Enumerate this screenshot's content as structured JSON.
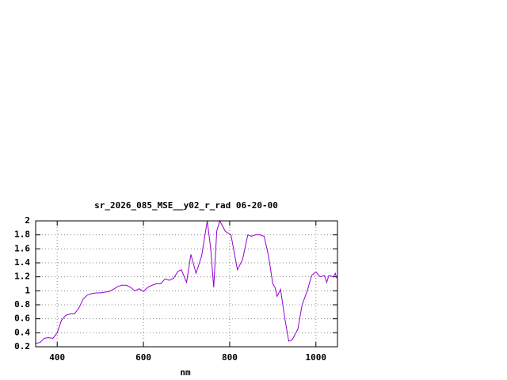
{
  "chart_data": {
    "type": "line",
    "title": "sr_2026_085_MSE__y02_r_rad 06-20-00",
    "x_label": "nm",
    "xlim": [
      350,
      1050
    ],
    "xticks": [
      400,
      600,
      800,
      1000
    ],
    "ylim": [
      0.2,
      2
    ],
    "yticks": [
      0.2,
      0.4,
      0.6,
      0.8,
      1,
      1.2,
      1.4,
      1.6,
      1.8,
      2
    ],
    "grid": true,
    "series": [
      {
        "name": null,
        "color": "#9400d3",
        "x": [
          350,
          360,
          370,
          380,
          390,
          400,
          410,
          420,
          430,
          440,
          450,
          460,
          470,
          480,
          490,
          500,
          510,
          520,
          530,
          540,
          550,
          560,
          570,
          580,
          590,
          600,
          610,
          620,
          630,
          640,
          650,
          660,
          670,
          680,
          688,
          700,
          710,
          722,
          735,
          748,
          756,
          763,
          770,
          777,
          790,
          803,
          818,
          830,
          842,
          850,
          860,
          870,
          880,
          890,
          900,
          905,
          910,
          918,
          928,
          937,
          945,
          958,
          968,
          980,
          990,
          1000,
          1010,
          1020,
          1025,
          1030,
          1040,
          1045,
          1048
        ],
        "values": [
          0.25,
          0.26,
          0.32,
          0.33,
          0.32,
          0.4,
          0.58,
          0.65,
          0.67,
          0.67,
          0.75,
          0.88,
          0.94,
          0.96,
          0.97,
          0.97,
          0.98,
          0.99,
          1.02,
          1.06,
          1.08,
          1.08,
          1.05,
          1.0,
          1.03,
          0.99,
          1.05,
          1.08,
          1.1,
          1.1,
          1.17,
          1.15,
          1.18,
          1.28,
          1.3,
          1.12,
          1.52,
          1.25,
          1.5,
          2.0,
          1.6,
          1.05,
          1.85,
          2.0,
          1.85,
          1.8,
          1.3,
          1.45,
          1.8,
          1.78,
          1.8,
          1.8,
          1.78,
          1.5,
          1.1,
          1.05,
          0.92,
          1.02,
          0.6,
          0.28,
          0.3,
          0.45,
          0.8,
          1.0,
          1.22,
          1.27,
          1.2,
          1.22,
          1.12,
          1.22,
          1.2,
          1.25,
          1.18
        ]
      }
    ]
  }
}
